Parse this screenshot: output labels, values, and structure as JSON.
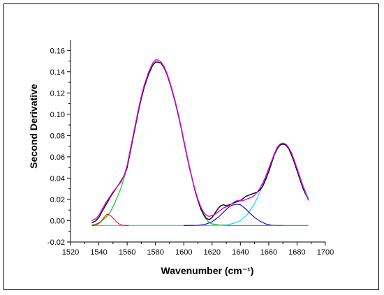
{
  "chart_data": {
    "type": "line",
    "title": "",
    "xlabel": "Wavenumber (cm⁻¹)",
    "ylabel": "Second Derivative",
    "xlim": [
      1520,
      1700
    ],
    "ylim": [
      -0.02,
      0.17
    ],
    "x_ticks": [
      1520,
      1540,
      1560,
      1580,
      1600,
      1620,
      1640,
      1660,
      1680,
      1700
    ],
    "y_ticks": [
      -0.02,
      0.0,
      0.02,
      0.04,
      0.06,
      0.08,
      0.1,
      0.12,
      0.14,
      0.16
    ],
    "x_tick_labels": [
      "1520",
      "1540",
      "1560",
      "1580",
      "1600",
      "1620",
      "1640",
      "1660",
      "1680",
      "1700"
    ],
    "y_tick_labels": [
      "-0.02",
      "0.00",
      "0.02",
      "0.04",
      "0.06",
      "0.08",
      "0.10",
      "0.12",
      "0.14",
      "0.16"
    ],
    "grid": false,
    "legend": "none",
    "series": [
      {
        "color": "#000000",
        "x": [
          1535,
          1538,
          1540,
          1542,
          1545,
          1548,
          1550,
          1553,
          1556,
          1558,
          1560,
          1563,
          1566,
          1568,
          1570,
          1572,
          1575,
          1578,
          1580,
          1582,
          1584,
          1586,
          1588,
          1590,
          1592,
          1594,
          1596,
          1598,
          1600,
          1602,
          1604,
          1606,
          1608,
          1610,
          1612,
          1614,
          1616,
          1618,
          1620,
          1622,
          1624,
          1626,
          1628,
          1630,
          1632,
          1634,
          1636,
          1638,
          1640,
          1642,
          1644,
          1646,
          1648,
          1650,
          1652,
          1654,
          1656,
          1658,
          1660,
          1662,
          1664,
          1666,
          1668,
          1670,
          1672,
          1674,
          1676,
          1678,
          1680,
          1682,
          1684,
          1686,
          1688
        ],
        "y": [
          -0.002,
          0.0,
          0.003,
          0.008,
          0.015,
          0.022,
          0.026,
          0.032,
          0.038,
          0.043,
          0.05,
          0.07,
          0.09,
          0.103,
          0.115,
          0.125,
          0.137,
          0.146,
          0.149,
          0.149,
          0.148,
          0.144,
          0.138,
          0.13,
          0.121,
          0.111,
          0.1,
          0.088,
          0.075,
          0.062,
          0.05,
          0.039,
          0.028,
          0.019,
          0.011,
          0.006,
          0.002,
          0.001,
          0.003,
          0.007,
          0.011,
          0.014,
          0.015,
          0.014,
          0.015,
          0.016,
          0.017,
          0.018,
          0.019,
          0.021,
          0.023,
          0.024,
          0.025,
          0.026,
          0.027,
          0.029,
          0.033,
          0.039,
          0.046,
          0.054,
          0.062,
          0.068,
          0.071,
          0.072,
          0.071,
          0.068,
          0.062,
          0.055,
          0.047,
          0.039,
          0.031,
          0.025,
          0.02
        ]
      },
      {
        "color": "#e000e0",
        "x": [
          1535,
          1538,
          1540,
          1542,
          1545,
          1548,
          1550,
          1553,
          1556,
          1558,
          1560,
          1563,
          1566,
          1568,
          1570,
          1572,
          1575,
          1578,
          1580,
          1582,
          1584,
          1586,
          1588,
          1590,
          1592,
          1594,
          1596,
          1598,
          1600,
          1602,
          1604,
          1606,
          1608,
          1610,
          1612,
          1614,
          1616,
          1618,
          1620,
          1622,
          1624,
          1626,
          1628,
          1630,
          1632,
          1634,
          1636,
          1638,
          1640,
          1642,
          1644,
          1646,
          1648,
          1650,
          1652,
          1654,
          1656,
          1658,
          1660,
          1662,
          1664,
          1666,
          1668,
          1670,
          1672,
          1674,
          1676,
          1678,
          1680,
          1682,
          1684,
          1686,
          1688
        ],
        "y": [
          0.0,
          0.002,
          0.005,
          0.01,
          0.017,
          0.023,
          0.027,
          0.032,
          0.037,
          0.043,
          0.052,
          0.072,
          0.092,
          0.105,
          0.117,
          0.127,
          0.139,
          0.148,
          0.151,
          0.151,
          0.149,
          0.145,
          0.139,
          0.131,
          0.122,
          0.112,
          0.101,
          0.089,
          0.076,
          0.063,
          0.051,
          0.039,
          0.029,
          0.02,
          0.013,
          0.008,
          0.005,
          0.004,
          0.005,
          0.006,
          0.008,
          0.01,
          0.012,
          0.013,
          0.014,
          0.016,
          0.018,
          0.019,
          0.019,
          0.019,
          0.02,
          0.021,
          0.022,
          0.024,
          0.027,
          0.031,
          0.036,
          0.042,
          0.049,
          0.056,
          0.063,
          0.069,
          0.072,
          0.073,
          0.072,
          0.069,
          0.064,
          0.057,
          0.049,
          0.041,
          0.033,
          0.026,
          0.019
        ]
      },
      {
        "color": "#ff0000",
        "x": [
          1535,
          1537,
          1539,
          1541,
          1543,
          1545,
          1546,
          1547,
          1549,
          1551,
          1553,
          1555,
          1557,
          1559,
          1561
        ],
        "y": [
          -0.0045,
          -0.0044,
          -0.0035,
          -0.0015,
          0.002,
          0.005,
          0.0062,
          0.0058,
          0.004,
          0.001,
          -0.0018,
          -0.0035,
          -0.0043,
          -0.0045,
          -0.0045
        ]
      },
      {
        "color": "#00c000",
        "x": [
          1535,
          1538,
          1540,
          1542,
          1545,
          1548,
          1550,
          1553,
          1556,
          1558,
          1560,
          1563,
          1566,
          1568,
          1570,
          1572,
          1575,
          1578,
          1580,
          1582,
          1584,
          1586,
          1588,
          1590,
          1592,
          1594,
          1596,
          1598,
          1600,
          1602,
          1604,
          1606,
          1608,
          1610,
          1612,
          1614,
          1616,
          1618,
          1620,
          1625,
          1630,
          1640,
          1650,
          1660,
          1670,
          1680,
          1688
        ],
        "y": [
          -0.004,
          -0.003,
          -0.002,
          0.0,
          0.003,
          0.008,
          0.013,
          0.022,
          0.032,
          0.041,
          0.05,
          0.07,
          0.09,
          0.103,
          0.115,
          0.125,
          0.137,
          0.146,
          0.149,
          0.149,
          0.148,
          0.144,
          0.138,
          0.13,
          0.121,
          0.111,
          0.1,
          0.088,
          0.075,
          0.062,
          0.05,
          0.039,
          0.028,
          0.019,
          0.011,
          0.005,
          0.001,
          -0.002,
          -0.003,
          -0.004,
          -0.0045,
          -0.0045,
          -0.0045,
          -0.0045,
          -0.0045,
          -0.0045,
          -0.0045
        ]
      },
      {
        "color": "#0000cc",
        "x": [
          1600,
          1610,
          1615,
          1620,
          1625,
          1628,
          1631,
          1634,
          1637,
          1640,
          1643,
          1646,
          1650,
          1654,
          1658,
          1662,
          1666,
          1670
        ],
        "y": [
          -0.0045,
          -0.0043,
          -0.0035,
          -0.001,
          0.004,
          0.008,
          0.012,
          0.0145,
          0.0155,
          0.015,
          0.012,
          0.008,
          0.003,
          -0.0005,
          -0.003,
          -0.0042,
          -0.0045,
          -0.0045
        ]
      },
      {
        "color": "#00d8e8",
        "x": [
          1535,
          1560,
          1580,
          1600,
          1620,
          1630,
          1635,
          1640,
          1645,
          1650,
          1655,
          1660,
          1664,
          1668,
          1670,
          1672,
          1676,
          1680,
          1684,
          1688
        ],
        "y": [
          -0.0045,
          -0.0045,
          -0.0045,
          -0.0045,
          -0.0045,
          -0.004,
          -0.0025,
          0.0,
          0.006,
          0.016,
          0.031,
          0.048,
          0.062,
          0.071,
          0.073,
          0.072,
          0.064,
          0.05,
          0.034,
          0.021
        ]
      }
    ]
  }
}
